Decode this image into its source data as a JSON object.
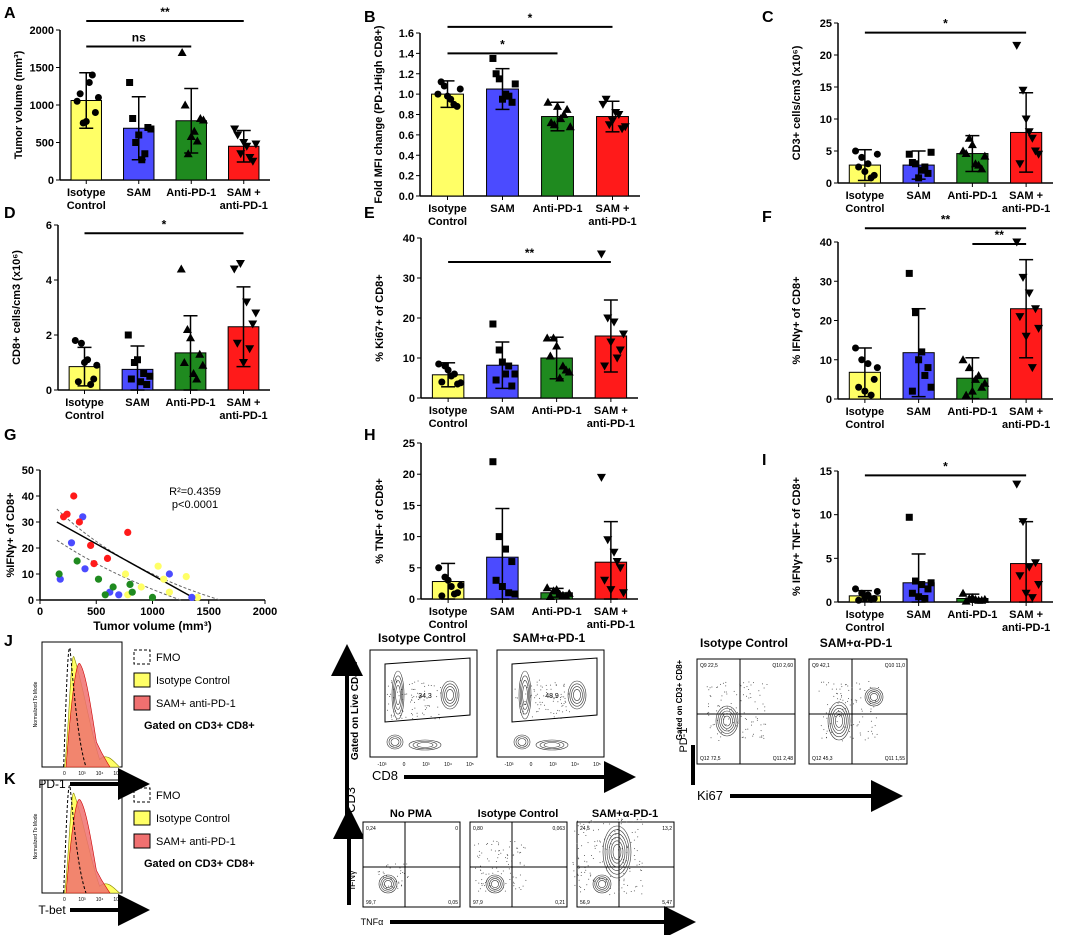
{
  "colors": {
    "isotype": "#ffff66",
    "sam": "#4b4bff",
    "antipd1": "#1f8a1f",
    "combo": "#ff1a1a",
    "black": "#000000"
  },
  "groups": [
    "Isotype Control",
    "SAM",
    "Anti-PD-1",
    "SAM + anti-PD-1"
  ],
  "chart_data": [
    {
      "id": "A",
      "type": "bar",
      "panel_label": "A",
      "ylabel": "Tumor volume (mm³)",
      "ylim": [
        0,
        2000
      ],
      "yticks": [
        "0",
        "500",
        "1000",
        "1500",
        "2000"
      ],
      "categories": [
        "Isotype|Control",
        "SAM",
        "Anti-PD-1",
        "SAM +|anti-PD-1"
      ],
      "values": [
        1060,
        690,
        790,
        450
      ],
      "errors": [
        370,
        420,
        430,
        210
      ],
      "points": [
        [
          1050,
          760,
          1300,
          900,
          1150,
          780,
          1400,
          1100
        ],
        [
          1300,
          500,
          270,
          700,
          820,
          600,
          350,
          680
        ],
        [
          1700,
          350,
          650,
          820,
          1000,
          580,
          520,
          800
        ],
        [
          680,
          350,
          450,
          250,
          600,
          500,
          300,
          480
        ]
      ],
      "sig": [
        {
          "a": 0,
          "b": 3,
          "label": "**",
          "y": 2120
        },
        {
          "a": 0,
          "b": 2,
          "label": "ns",
          "y": 1780
        }
      ]
    },
    {
      "id": "B",
      "type": "bar",
      "panel_label": "B",
      "ylabel": "Fold MFI change (PD-1High CD8+)",
      "ylim": [
        0,
        1.6
      ],
      "yticks": [
        "0.0",
        "0.2",
        "0.4",
        "0.6",
        "0.8",
        "1.0",
        "1.2",
        "1.4",
        "1.6"
      ],
      "categories": [
        "Isotype|Control",
        "SAM",
        "Anti-PD-1",
        "SAM +|anti-PD-1"
      ],
      "values": [
        1.0,
        1.05,
        0.78,
        0.78
      ],
      "errors": [
        0.13,
        0.2,
        0.14,
        0.15
      ],
      "points": [
        [
          1.0,
          1.08,
          0.95,
          0.88,
          1.12,
          0.98,
          0.9,
          1.05
        ],
        [
          1.35,
          1.15,
          1.0,
          0.92,
          1.2,
          0.95,
          0.98,
          1.1
        ],
        [
          0.92,
          0.7,
          0.76,
          0.85,
          0.72,
          0.88,
          0.8,
          0.68
        ],
        [
          0.9,
          0.7,
          0.82,
          0.66,
          0.95,
          0.74,
          0.8,
          0.68
        ]
      ],
      "sig": [
        {
          "a": 0,
          "b": 3,
          "label": "*",
          "y": 1.66
        },
        {
          "a": 0,
          "b": 2,
          "label": "*",
          "y": 1.4
        }
      ]
    },
    {
      "id": "C",
      "type": "bar",
      "panel_label": "C",
      "ylabel": "CD3+ cells/cm3 (x10⁶)",
      "ylim": [
        0,
        25
      ],
      "yticks": [
        "0",
        "5",
        "10",
        "15",
        "20",
        "25"
      ],
      "categories": [
        "Isotype|Control",
        "SAM",
        "Anti-PD-1",
        "SAM +|anti-PD-1"
      ],
      "values": [
        2.8,
        2.8,
        4.6,
        7.9
      ],
      "errors": [
        2.4,
        2.2,
        2.8,
        6.2
      ],
      "points": [
        [
          5.0,
          4.0,
          3.0,
          1.2,
          2.5,
          1.8,
          0.8,
          4.5
        ],
        [
          4.5,
          3.0,
          2.0,
          1.5,
          3.2,
          0.8,
          2.5,
          4.8
        ],
        [
          5.0,
          7.0,
          3.0,
          2.2,
          4.6,
          6.0,
          2.8,
          4.2
        ],
        [
          21.5,
          14.5,
          8.0,
          5.0,
          3.0,
          10.0,
          7.0,
          4.5
        ]
      ],
      "sig": [
        {
          "a": 0,
          "b": 3,
          "label": "*",
          "y": 23.5
        }
      ]
    },
    {
      "id": "D",
      "type": "bar",
      "panel_label": "D",
      "ylabel": "CD8+ cells/cm3 (x10⁶)",
      "ylim": [
        0,
        6
      ],
      "yticks": [
        "0",
        "2",
        "4",
        "6"
      ],
      "categories": [
        "Isotype|Control",
        "SAM",
        "Anti-PD-1",
        "SAM +|anti-PD-1"
      ],
      "values": [
        0.85,
        0.75,
        1.35,
        2.3
      ],
      "errors": [
        0.7,
        0.85,
        1.35,
        1.45
      ],
      "points": [
        [
          1.8,
          1.7,
          1.1,
          0.4,
          0.3,
          1.0,
          0.2,
          0.9
        ],
        [
          2.0,
          1.0,
          0.3,
          0.2,
          0.4,
          1.1,
          0.6,
          0.5
        ],
        [
          4.4,
          2.2,
          0.6,
          1.3,
          1.0,
          1.9,
          0.4,
          0.9
        ],
        [
          4.4,
          4.6,
          3.2,
          2.4,
          1.7,
          1.0,
          1.5,
          2.8
        ]
      ],
      "sig": [
        {
          "a": 0,
          "b": 3,
          "label": "*",
          "y": 5.7
        }
      ]
    },
    {
      "id": "E",
      "type": "bar",
      "panel_label": "E",
      "ylabel": "% Ki67+ of CD8+",
      "ylim": [
        0,
        40
      ],
      "yticks": [
        "0",
        "10",
        "20",
        "30",
        "40"
      ],
      "categories": [
        "Isotype|Control",
        "SAM",
        "Anti-PD-1",
        "SAM +|anti-PD-1"
      ],
      "values": [
        5.8,
        8.2,
        10.0,
        15.5
      ],
      "errors": [
        3.0,
        5.8,
        5.2,
        9.0
      ],
      "points": [
        [
          8.5,
          8.0,
          5.5,
          3.5,
          4.0,
          7.0,
          6.0,
          3.8
        ],
        [
          18.5,
          12.0,
          6.0,
          3.0,
          4.5,
          9.0,
          8.0,
          6.0
        ],
        [
          15.0,
          15.0,
          5.0,
          7.0,
          10.5,
          13.0,
          8.0,
          6.5
        ],
        [
          36.0,
          20.0,
          19.0,
          12.0,
          8.0,
          14.0,
          10.0,
          16.0
        ]
      ],
      "sig": [
        {
          "a": 0,
          "b": 3,
          "label": "**",
          "y": 34
        }
      ]
    },
    {
      "id": "F",
      "type": "bar",
      "panel_label": "F",
      "ylabel": "% IFNγ+ of CD8+",
      "ylim": [
        0,
        40
      ],
      "yticks": [
        "0",
        "10",
        "20",
        "30",
        "40"
      ],
      "categories": [
        "Isotype|Control",
        "SAM",
        "Anti-PD-1",
        "SAM +|anti-PD-1"
      ],
      "values": [
        6.8,
        11.8,
        5.3,
        23.0
      ],
      "errors": [
        6.2,
        11.2,
        5.2,
        12.5
      ],
      "points": [
        [
          13.0,
          10.0,
          9.0,
          5.0,
          3.0,
          2.0,
          1.0,
          8.0
        ],
        [
          32.0,
          22.0,
          12.0,
          8.0,
          2.0,
          10.0,
          6.0,
          3.0
        ],
        [
          10.0,
          8.0,
          5.0,
          3.0,
          1.0,
          2.0,
          6.0,
          4.0
        ],
        [
          40.0,
          31.0,
          27.0,
          23.0,
          21.0,
          16.0,
          8.0,
          18.0
        ]
      ],
      "sig": [
        {
          "a": 0,
          "b": 3,
          "label": "**",
          "y": 43.5
        },
        {
          "a": 2,
          "b": 3,
          "label": "**",
          "y": 39.5
        }
      ]
    },
    {
      "id": "H",
      "type": "bar",
      "panel_label": "H",
      "ylabel": "% TNF+ of CD8+",
      "ylim": [
        0,
        25
      ],
      "yticks": [
        "0",
        "5",
        "10",
        "15",
        "20",
        "25"
      ],
      "categories": [
        "Isotype|Control",
        "SAM",
        "Anti-PD-1",
        "SAM +|anti-PD-1"
      ],
      "values": [
        2.8,
        6.7,
        1.0,
        5.9
      ],
      "errors": [
        2.9,
        7.8,
        0.7,
        6.5
      ],
      "points": [
        [
          5.0,
          3.5,
          2.0,
          1.0,
          0.5,
          3.0,
          0.8,
          2.2
        ],
        [
          22.0,
          10.0,
          8.0,
          6.0,
          3.0,
          2.0,
          1.0,
          0.8
        ],
        [
          1.8,
          1.3,
          0.8,
          0.5,
          0.4,
          1.5,
          0.6,
          0.9
        ],
        [
          19.5,
          9.5,
          7.5,
          5.0,
          3.0,
          1.5,
          6.0,
          1.0
        ]
      ],
      "sig": []
    },
    {
      "id": "I",
      "type": "bar",
      "panel_label": "I",
      "ylabel": "% IFNγ+ TNF+ of CD8+",
      "ylim": [
        0,
        15
      ],
      "yticks": [
        "0",
        "5",
        "10",
        "15"
      ],
      "categories": [
        "Isotype|Control",
        "SAM",
        "Anti-PD-1",
        "SAM +|anti-PD-1"
      ],
      "values": [
        0.7,
        2.2,
        0.4,
        4.4
      ],
      "errors": [
        0.6,
        3.3,
        0.5,
        4.8
      ],
      "points": [
        [
          1.5,
          1.0,
          0.8,
          0.4,
          0.2,
          0.5,
          0.3,
          1.2
        ],
        [
          9.7,
          2.4,
          2.0,
          1.5,
          1.0,
          0.6,
          0.4,
          2.2
        ],
        [
          1.0,
          0.4,
          0.3,
          0.2,
          0.1,
          0.5,
          0.2,
          0.3
        ],
        [
          13.5,
          9.2,
          4.0,
          4.5,
          3.0,
          1.0,
          0.5,
          2.0
        ]
      ],
      "sig": [
        {
          "a": 0,
          "b": 3,
          "label": "*",
          "y": 14.5
        }
      ]
    },
    {
      "id": "G",
      "type": "scatter",
      "panel_label": "G",
      "xlabel": "Tumor volume (mm³)",
      "ylabel": "%IFNγ+ of CD8+",
      "xlim": [
        0,
        2000
      ],
      "ylim": [
        0,
        50
      ],
      "xticks": [
        "0",
        "500",
        "1000",
        "1500",
        "2000"
      ],
      "yticks": [
        "0",
        "10",
        "20",
        "30",
        "40",
        "50"
      ],
      "r2": "R²=0.4359",
      "p": "p<0.0001",
      "fit": {
        "x1": 150,
        "y1": 30,
        "x2": 1400,
        "y2": 0
      },
      "series": [
        {
          "group": "Isotype Control",
          "x": [
            1050,
            760,
            1300,
            900,
            1150,
            780,
            1400,
            1100
          ],
          "y": [
            13,
            10,
            9,
            5,
            3,
            2,
            1,
            8
          ]
        },
        {
          "group": "SAM",
          "x": [
            380,
            280,
            400,
            180,
            700,
            1150,
            1350,
            620
          ],
          "y": [
            32,
            22,
            12,
            8,
            2,
            10,
            1,
            3
          ]
        },
        {
          "group": "Anti-PD-1",
          "x": [
            170,
            520,
            650,
            820,
            1000,
            580,
            800,
            330
          ],
          "y": [
            10,
            8,
            5,
            3,
            1,
            2,
            6,
            15
          ]
        },
        {
          "group": "SAM + anti-PD-1",
          "x": [
            300,
            240,
            210,
            780,
            450,
            600,
            350,
            480
          ],
          "y": [
            40,
            33,
            32,
            26,
            21,
            16,
            30,
            14
          ]
        }
      ]
    }
  ],
  "flow": {
    "J": {
      "panel_label": "J",
      "xaxis": "PD-1",
      "yaxis": "Normalized To Mode",
      "legend": [
        "FMO",
        "Isotype Control",
        "SAM+ anti-PD-1"
      ],
      "gated": "Gated on CD3+ CD8+",
      "ticks": [
        "0",
        "10³",
        "10⁴",
        "10⁵"
      ]
    },
    "K": {
      "panel_label": "K",
      "xaxis": "T-bet",
      "yaxis": "Normalized To Mode",
      "legend": [
        "FMO",
        "Isotype Control",
        "SAM+ anti-PD-1"
      ],
      "gated": "Gated on CD3+ CD8+",
      "ticks": [
        "0",
        "10³",
        "10⁴",
        "10⁵"
      ]
    },
    "cd3cd8": {
      "gated": "Gated on Live CD45+",
      "xaxis": "CD8",
      "yaxis": "CD3",
      "plots": [
        {
          "title": "Isotype Control",
          "gate_value": "34,3"
        },
        {
          "title": "SAM+α-PD-1",
          "gate_value": "48,9"
        }
      ],
      "ticks": [
        "-10³",
        "0",
        "10³",
        "10⁴",
        "10⁵"
      ]
    },
    "pd1ki67": {
      "gated": "Gated on CD3+ CD8+",
      "xaxis": "Ki67",
      "yaxis": "PD-1",
      "plots": [
        {
          "title": "Isotype Control",
          "q": [
            "Q9 22,5",
            "Q10 2,60",
            "Q12 72,5",
            "Q11 2,48"
          ]
        },
        {
          "title": "SAM+α-PD-1",
          "q": [
            "Q9 42,1",
            "Q10 11,0",
            "Q12 45,3",
            "Q11 1,55"
          ]
        }
      ]
    },
    "ifn_tnf": {
      "xaxis": "TNFα",
      "yaxis": "IFNγ",
      "plots": [
        {
          "title": "No PMA",
          "q": [
            "0,24",
            "0",
            "99,7",
            "0,05"
          ]
        },
        {
          "title": "Isotype Control",
          "q": [
            "0,80",
            "0,063",
            "97,9",
            "0,21"
          ]
        },
        {
          "title": "SAM+α-PD-1",
          "q": [
            "24,5",
            "13,2",
            "56,9",
            "5,47"
          ]
        }
      ]
    }
  }
}
